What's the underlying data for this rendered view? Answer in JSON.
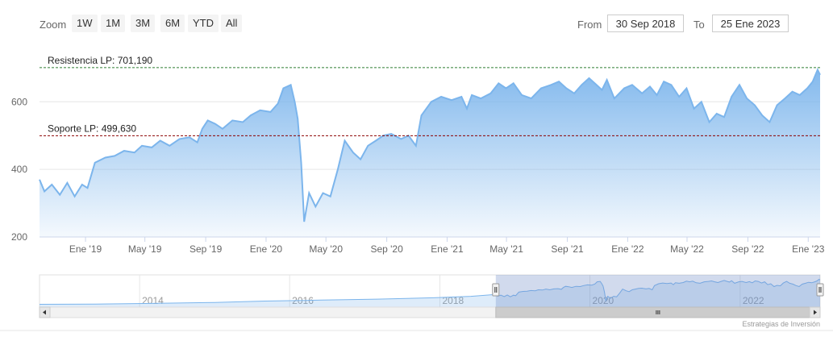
{
  "range_selector": {
    "zoom_label": "Zoom",
    "buttons": [
      "1W",
      "1M",
      "3M",
      "6M",
      "YTD",
      "All"
    ],
    "from_label": "From",
    "from_value": "30 Sep 2018",
    "to_label": "To",
    "to_value": "25 Ene 2023"
  },
  "credits": "Estrategias de Inversión",
  "colors": {
    "line": "#7cb5ec",
    "support": "#8b0000",
    "resistance": "#2e7d32",
    "navigator_mask": "#6685c2"
  },
  "chart_data": {
    "type": "area",
    "x_range": [
      "2018-09-30",
      "2023-01-25"
    ],
    "ylim": [
      200,
      720
    ],
    "yticks": [
      200,
      400,
      600
    ],
    "xticks": [
      {
        "date": "2019-01-01",
        "label": "Ene '19"
      },
      {
        "date": "2019-05-01",
        "label": "May '19"
      },
      {
        "date": "2019-09-01",
        "label": "Sep '19"
      },
      {
        "date": "2020-01-01",
        "label": "Ene '20"
      },
      {
        "date": "2020-05-01",
        "label": "May '20"
      },
      {
        "date": "2020-09-01",
        "label": "Sep '20"
      },
      {
        "date": "2021-01-01",
        "label": "Ene '21"
      },
      {
        "date": "2021-05-01",
        "label": "May '21"
      },
      {
        "date": "2021-09-01",
        "label": "Sep '21"
      },
      {
        "date": "2022-01-01",
        "label": "Ene '22"
      },
      {
        "date": "2022-05-01",
        "label": "May '22"
      },
      {
        "date": "2022-09-01",
        "label": "Sep '22"
      },
      {
        "date": "2023-01-01",
        "label": "Ene '23"
      }
    ],
    "plot_lines": [
      {
        "label": "Resistencia LP: 701,190",
        "value": 701.19,
        "style": "dashed"
      },
      {
        "label": "Soporte LP: 499,630",
        "value": 499.63,
        "style": "dashed"
      }
    ],
    "series": [
      {
        "points": [
          [
            "2018-09-30",
            370
          ],
          [
            "2018-10-10",
            335
          ],
          [
            "2018-10-25",
            355
          ],
          [
            "2018-11-10",
            325
          ],
          [
            "2018-11-25",
            360
          ],
          [
            "2018-12-10",
            320
          ],
          [
            "2018-12-25",
            355
          ],
          [
            "2019-01-05",
            345
          ],
          [
            "2019-01-20",
            420
          ],
          [
            "2019-02-10",
            435
          ],
          [
            "2019-03-01",
            440
          ],
          [
            "2019-03-20",
            455
          ],
          [
            "2019-04-10",
            450
          ],
          [
            "2019-04-25",
            470
          ],
          [
            "2019-05-15",
            465
          ],
          [
            "2019-06-01",
            485
          ],
          [
            "2019-06-20",
            470
          ],
          [
            "2019-07-10",
            490
          ],
          [
            "2019-07-30",
            495
          ],
          [
            "2019-08-15",
            480
          ],
          [
            "2019-08-25",
            520
          ],
          [
            "2019-09-05",
            545
          ],
          [
            "2019-09-20",
            535
          ],
          [
            "2019-10-05",
            520
          ],
          [
            "2019-10-25",
            545
          ],
          [
            "2019-11-15",
            540
          ],
          [
            "2019-12-01",
            560
          ],
          [
            "2019-12-20",
            575
          ],
          [
            "2020-01-10",
            570
          ],
          [
            "2020-01-25",
            595
          ],
          [
            "2020-02-05",
            640
          ],
          [
            "2020-02-20",
            650
          ],
          [
            "2020-02-28",
            600
          ],
          [
            "2020-03-05",
            550
          ],
          [
            "2020-03-12",
            420
          ],
          [
            "2020-03-18",
            245
          ],
          [
            "2020-03-28",
            330
          ],
          [
            "2020-04-10",
            290
          ],
          [
            "2020-04-25",
            330
          ],
          [
            "2020-05-10",
            320
          ],
          [
            "2020-05-25",
            400
          ],
          [
            "2020-06-08",
            485
          ],
          [
            "2020-06-25",
            450
          ],
          [
            "2020-07-10",
            430
          ],
          [
            "2020-07-25",
            470
          ],
          [
            "2020-08-10",
            485
          ],
          [
            "2020-08-25",
            500
          ],
          [
            "2020-09-10",
            505
          ],
          [
            "2020-09-30",
            490
          ],
          [
            "2020-10-15",
            500
          ],
          [
            "2020-10-30",
            470
          ],
          [
            "2020-11-10",
            560
          ],
          [
            "2020-11-30",
            600
          ],
          [
            "2020-12-20",
            615
          ],
          [
            "2021-01-10",
            605
          ],
          [
            "2021-01-30",
            615
          ],
          [
            "2021-02-10",
            580
          ],
          [
            "2021-02-20",
            620
          ],
          [
            "2021-03-10",
            610
          ],
          [
            "2021-03-30",
            625
          ],
          [
            "2021-04-15",
            655
          ],
          [
            "2021-04-30",
            640
          ],
          [
            "2021-05-15",
            655
          ],
          [
            "2021-06-01",
            620
          ],
          [
            "2021-06-20",
            610
          ],
          [
            "2021-07-10",
            640
          ],
          [
            "2021-07-30",
            650
          ],
          [
            "2021-08-15",
            660
          ],
          [
            "2021-08-30",
            640
          ],
          [
            "2021-09-15",
            625
          ],
          [
            "2021-09-30",
            650
          ],
          [
            "2021-10-15",
            670
          ],
          [
            "2021-10-30",
            650
          ],
          [
            "2021-11-10",
            635
          ],
          [
            "2021-11-20",
            665
          ],
          [
            "2021-12-05",
            610
          ],
          [
            "2021-12-25",
            640
          ],
          [
            "2022-01-10",
            650
          ],
          [
            "2022-01-30",
            625
          ],
          [
            "2022-02-15",
            645
          ],
          [
            "2022-03-01",
            620
          ],
          [
            "2022-03-15",
            660
          ],
          [
            "2022-03-30",
            650
          ],
          [
            "2022-04-15",
            615
          ],
          [
            "2022-04-30",
            640
          ],
          [
            "2022-05-15",
            580
          ],
          [
            "2022-05-30",
            600
          ],
          [
            "2022-06-15",
            540
          ],
          [
            "2022-06-30",
            565
          ],
          [
            "2022-07-15",
            555
          ],
          [
            "2022-07-30",
            615
          ],
          [
            "2022-08-15",
            650
          ],
          [
            "2022-08-30",
            610
          ],
          [
            "2022-09-15",
            590
          ],
          [
            "2022-09-30",
            560
          ],
          [
            "2022-10-15",
            540
          ],
          [
            "2022-10-30",
            590
          ],
          [
            "2022-11-15",
            610
          ],
          [
            "2022-11-30",
            630
          ],
          [
            "2022-12-15",
            620
          ],
          [
            "2022-12-30",
            640
          ],
          [
            "2023-01-10",
            660
          ],
          [
            "2023-01-20",
            695
          ],
          [
            "2023-01-25",
            680
          ]
        ]
      }
    ]
  },
  "navigator": {
    "xticks": [
      {
        "date": "2014-01-01",
        "label": "2014"
      },
      {
        "date": "2016-01-01",
        "label": "2016"
      },
      {
        "date": "2018-01-01",
        "label": "2018"
      },
      {
        "date": "2020-01-01",
        "label": "2020"
      },
      {
        "date": "2022-01-01",
        "label": "2022"
      }
    ],
    "x_range": [
      "2012-09-01",
      "2023-01-25"
    ],
    "series": [
      [
        "2012-09-01",
        160
      ],
      [
        "2013-06-01",
        165
      ],
      [
        "2014-03-01",
        180
      ],
      [
        "2015-01-01",
        200
      ],
      [
        "2015-09-01",
        230
      ],
      [
        "2016-06-01",
        250
      ],
      [
        "2017-03-01",
        270
      ],
      [
        "2017-12-01",
        300
      ],
      [
        "2018-06-01",
        330
      ],
      [
        "2018-09-30",
        370
      ]
    ]
  }
}
